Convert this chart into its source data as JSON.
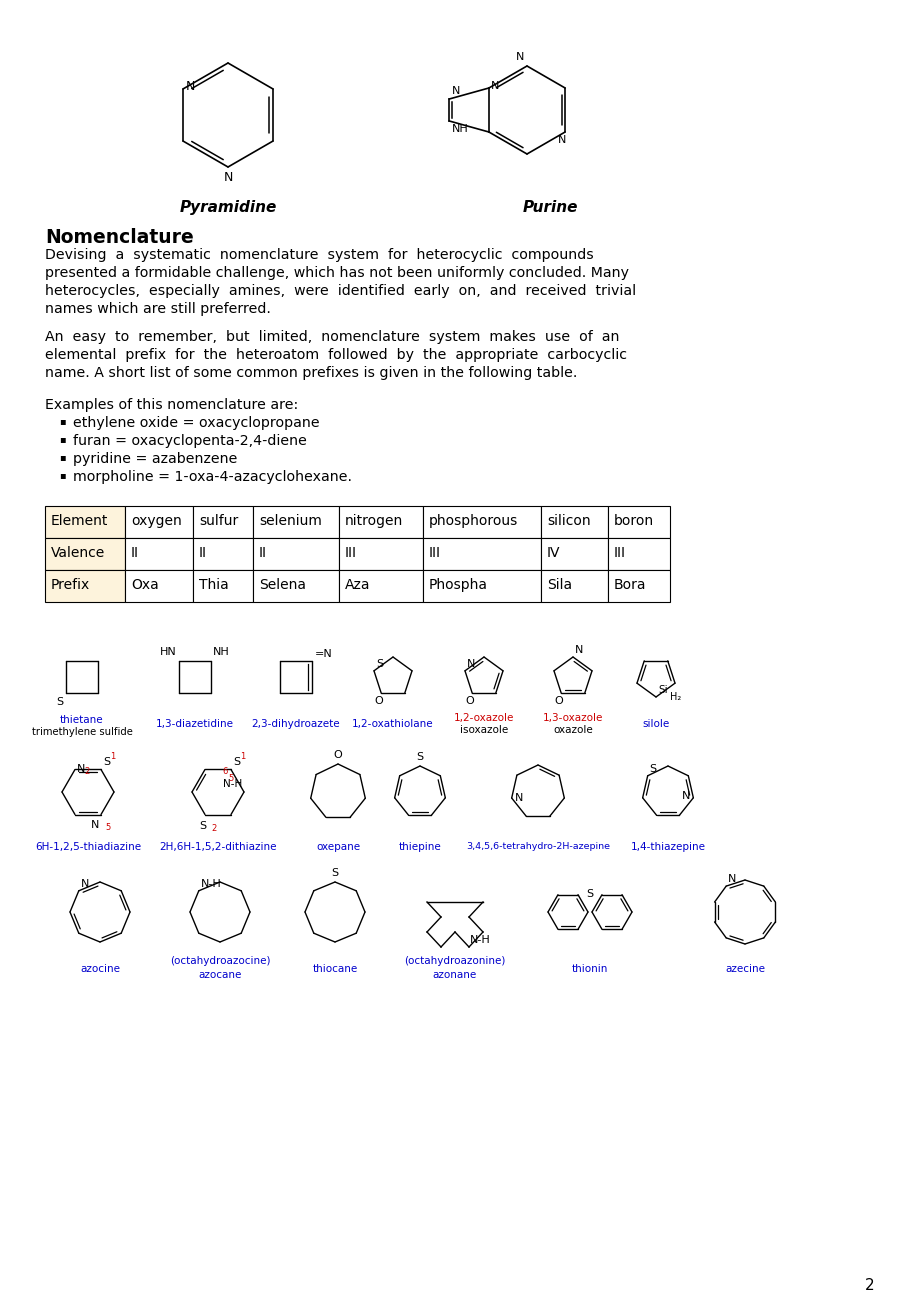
{
  "page_number": "2",
  "bg": "#ffffff",
  "title_pyr": "Pyramidine",
  "title_pur": "Purine",
  "section_title": "Nomenclature",
  "para1_lines": [
    "Devising  a  systematic  nomenclature  system  for  heterocyclic  compounds",
    "presented a formidable challenge, which has not been uniformly concluded. Many",
    "heterocycles,  especially  amines,  were  identified  early  on,  and  received  trivial",
    "names which are still preferred."
  ],
  "para2_lines": [
    "An  easy  to  remember,  but  limited,  nomenclature  system  makes  use  of  an",
    "elemental  prefix  for  the  heteroatom  followed  by  the  appropriate  carbocyclic",
    "name. A short list of some common prefixes is given in the following table."
  ],
  "examples_intro": "Examples of this nomenclature are:",
  "bullets": [
    "ethylene oxide = oxacyclopropane",
    "furan = oxacyclopenta-2,4-diene",
    "pyridine = azabenzene",
    "morpholine = 1-oxa-4-azacyclohexane."
  ],
  "table_row1": [
    "Element",
    "oxygen",
    "sulfur",
    "selenium",
    "nitrogen",
    "phosphorous",
    "silicon",
    "boron"
  ],
  "table_row2": [
    "Valence",
    "II",
    "II",
    "II",
    "III",
    "III",
    "IV",
    "III"
  ],
  "table_row3": [
    "Prefix",
    "Oxa",
    "Thia",
    "Selena",
    "Aza",
    "Phospha",
    "Sila",
    "Bora"
  ],
  "col1_bg": "#fdf3dc",
  "black": "#000000",
  "blue": "#0000cc",
  "red": "#cc0000"
}
